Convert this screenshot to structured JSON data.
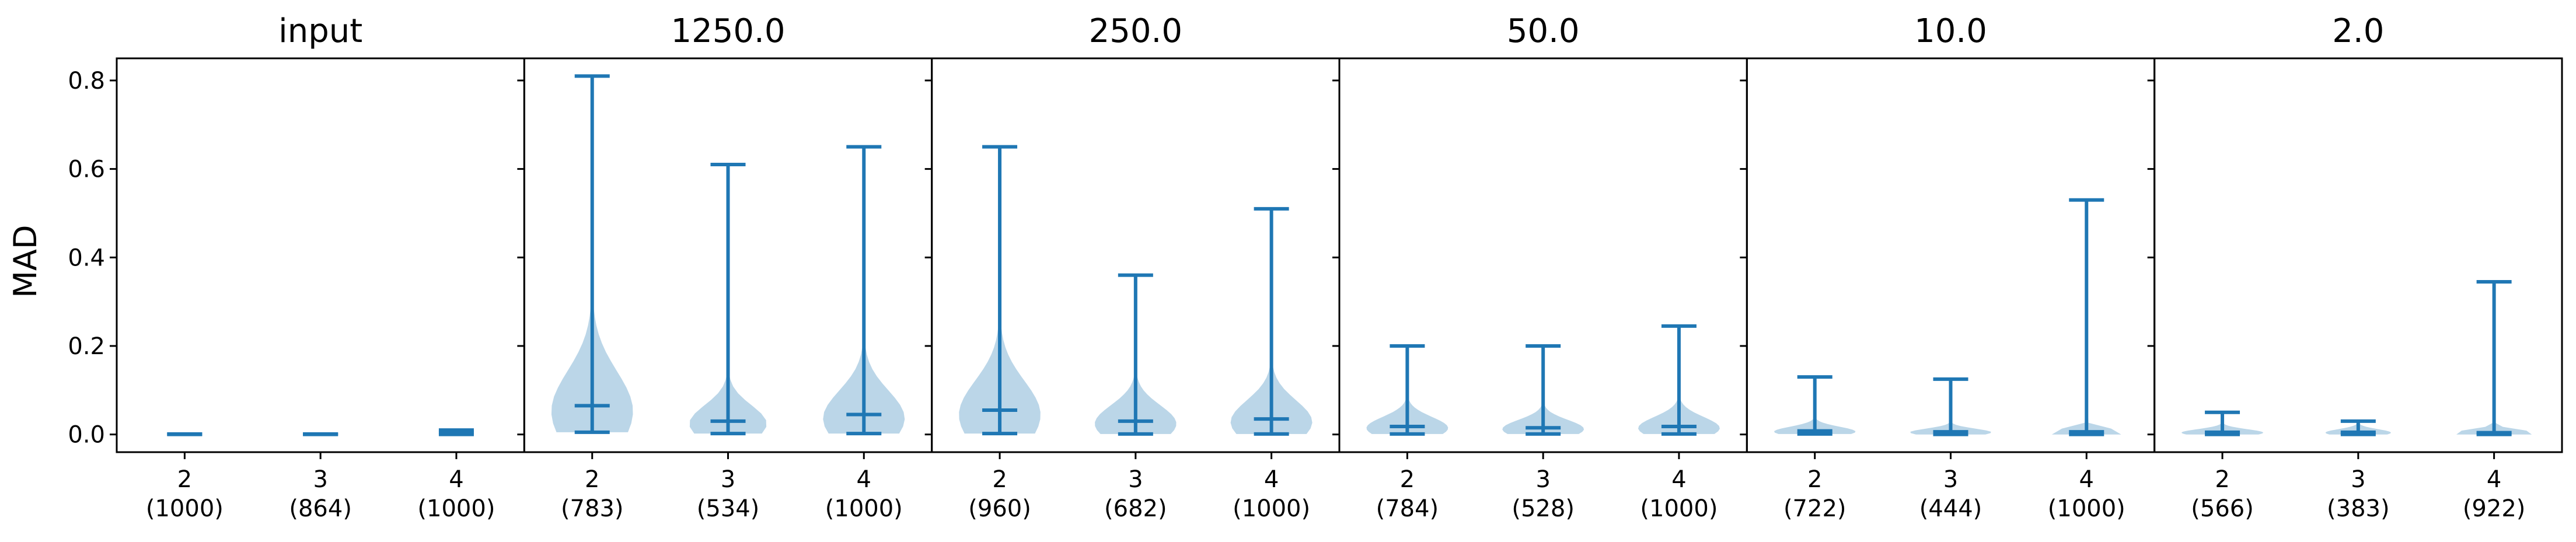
{
  "chart_data": {
    "type": "violin",
    "ylabel": "MAD",
    "ylim": [
      -0.04,
      0.85
    ],
    "yticks": [
      0.0,
      0.2,
      0.4,
      0.6,
      0.8
    ],
    "ytick_labels": [
      "0.0",
      "0.2",
      "0.4",
      "0.6",
      "0.8"
    ],
    "panels": [
      {
        "title": "input",
        "categories": [
          "2",
          "3",
          "4"
        ],
        "counts": [
          "(1000)",
          "(864)",
          "(1000)"
        ],
        "series": [
          {
            "category": "2",
            "max": 0.001,
            "mean": 0.0005,
            "min": 0.0,
            "width": 0.0
          },
          {
            "category": "3",
            "max": 0.001,
            "mean": 0.0005,
            "min": 0.0,
            "width": 0.0
          },
          {
            "category": "4",
            "max": 0.01,
            "mean": 0.005,
            "min": 0.0,
            "width": 0.25
          }
        ]
      },
      {
        "title": "1250.0",
        "categories": [
          "2",
          "3",
          "4"
        ],
        "counts": [
          "(783)",
          "(534)",
          "(1000)"
        ],
        "series": [
          {
            "category": "2",
            "max": 0.81,
            "mean": 0.065,
            "min": 0.005,
            "width": 1.0
          },
          {
            "category": "3",
            "max": 0.61,
            "mean": 0.03,
            "min": 0.002,
            "width": 0.95
          },
          {
            "category": "4",
            "max": 0.65,
            "mean": 0.045,
            "min": 0.002,
            "width": 1.0
          }
        ]
      },
      {
        "title": "250.0",
        "categories": [
          "2",
          "3",
          "4"
        ],
        "counts": [
          "(960)",
          "(682)",
          "(1000)"
        ],
        "series": [
          {
            "category": "2",
            "max": 0.65,
            "mean": 0.055,
            "min": 0.002,
            "width": 1.0
          },
          {
            "category": "3",
            "max": 0.36,
            "mean": 0.03,
            "min": 0.001,
            "width": 1.0
          },
          {
            "category": "4",
            "max": 0.51,
            "mean": 0.035,
            "min": 0.001,
            "width": 1.0
          }
        ]
      },
      {
        "title": "50.0",
        "categories": [
          "2",
          "3",
          "4"
        ],
        "counts": [
          "(784)",
          "(528)",
          "(1000)"
        ],
        "series": [
          {
            "category": "2",
            "max": 0.2,
            "mean": 0.018,
            "min": 0.001,
            "width": 1.0
          },
          {
            "category": "3",
            "max": 0.2,
            "mean": 0.015,
            "min": 0.001,
            "width": 1.0
          },
          {
            "category": "4",
            "max": 0.245,
            "mean": 0.018,
            "min": 0.001,
            "width": 1.0
          }
        ]
      },
      {
        "title": "10.0",
        "categories": [
          "2",
          "3",
          "4"
        ],
        "counts": [
          "(722)",
          "(444)",
          "(1000)"
        ],
        "series": [
          {
            "category": "2",
            "max": 0.13,
            "mean": 0.008,
            "min": 0.001,
            "width": 1.0
          },
          {
            "category": "3",
            "max": 0.125,
            "mean": 0.006,
            "min": 0.0,
            "width": 1.0
          },
          {
            "category": "4",
            "max": 0.53,
            "mean": 0.006,
            "min": 0.0,
            "width": 1.0
          }
        ]
      },
      {
        "title": "2.0",
        "categories": [
          "2",
          "3",
          "4"
        ],
        "counts": [
          "(566)",
          "(383)",
          "(922)"
        ],
        "series": [
          {
            "category": "2",
            "max": 0.05,
            "mean": 0.005,
            "min": 0.0,
            "width": 1.0
          },
          {
            "category": "3",
            "max": 0.03,
            "mean": 0.005,
            "min": 0.0,
            "width": 0.8
          },
          {
            "category": "4",
            "max": 0.345,
            "mean": 0.004,
            "min": 0.0,
            "width": 1.0
          }
        ]
      }
    ],
    "color": "#1f77b4",
    "grid": false,
    "legend": false
  }
}
